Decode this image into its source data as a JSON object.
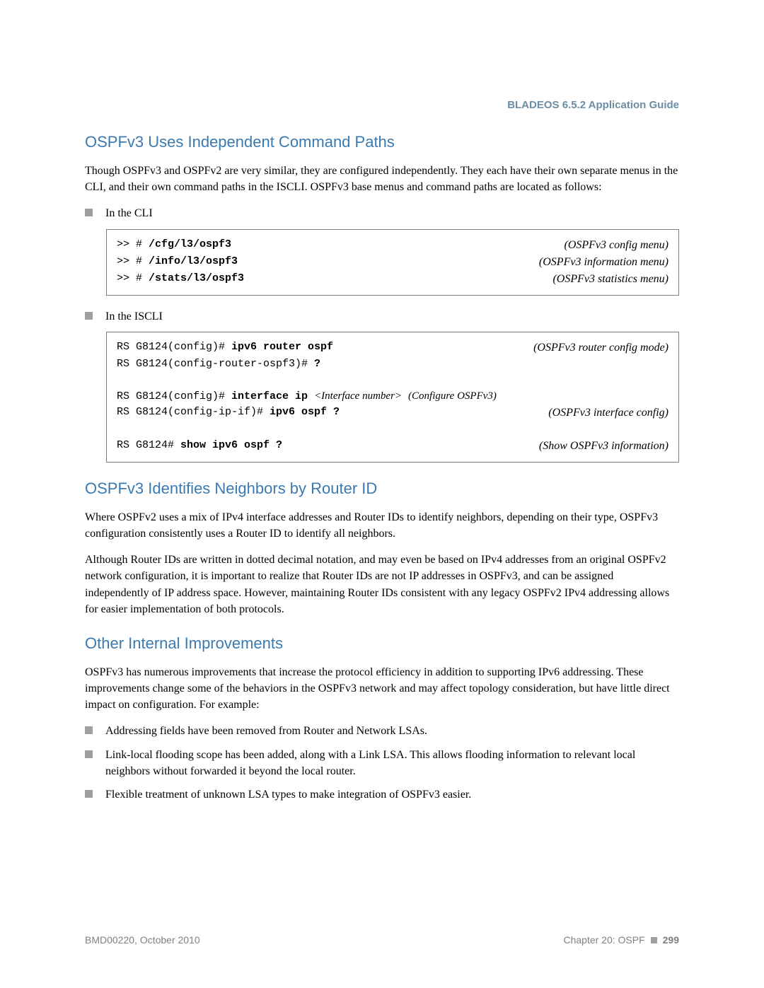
{
  "header": {
    "guide_title": "BLADEOS 6.5.2 Application Guide"
  },
  "sections": {
    "s1": {
      "title": "OSPFv3 Uses Independent Command Paths",
      "p1": "Though OSPFv3 and OSPFv2 are very similar, they are configured independently. They each have their own separate menus in the CLI, and their own command paths in the ISCLI. OSPFv3 base menus and command paths are located as follows:",
      "bul1": "In the CLI",
      "bul2": "In the ISCLI"
    },
    "code1": {
      "l1_prefix": ">> # ",
      "l1_cmd": "/cfg/l3/ospf3",
      "l1_note": "(OSPFv3 config menu)",
      "l2_prefix": ">> # ",
      "l2_cmd": "/info/l3/ospf3",
      "l2_note": "(OSPFv3 information menu)",
      "l3_prefix": ">> # ",
      "l3_cmd": "/stats/l3/ospf3",
      "l3_note": "(OSPFv3 statistics menu)"
    },
    "code2": {
      "l1_prefix": "RS G8124(config)# ",
      "l1_cmd": "ipv6 router ospf",
      "l1_note": "(OSPFv3 router config mode)",
      "l2_prefix": "RS G8124(config-router-ospf3)# ",
      "l2_cmd": "?",
      "l3_prefix": "RS G8124(config)# ",
      "l3_cmd": "interface ip ",
      "l3_arg": "<Interface number>",
      "l3_note": "(Configure OSPFv3)",
      "l4_prefix": "RS G8124(config-ip-if)# ",
      "l4_cmd": "ipv6 ospf ?",
      "l4_note": "(OSPFv3 interface config)",
      "l5_prefix": "RS G8124# ",
      "l5_cmd": "show ipv6 ospf ?",
      "l5_note": "(Show OSPFv3 information)"
    },
    "s2": {
      "title": "OSPFv3 Identifies Neighbors by Router ID",
      "p1": "Where OSPFv2 uses a mix of IPv4 interface addresses and Router IDs to identify neighbors, depending on their type, OSPFv3 configuration consistently uses a Router ID to identify all neighbors.",
      "p2": "Although Router IDs are written in dotted decimal notation, and may even be based on IPv4 addresses from an original OSPFv2 network configuration, it is important to realize that Router IDs are not IP addresses in OSPFv3, and can be assigned independently of IP address space. However, maintaining Router IDs consistent with any legacy OSPFv2 IPv4 addressing allows for easier implementation of both protocols."
    },
    "s3": {
      "title": "Other Internal Improvements",
      "p1": "OSPFv3 has numerous improvements that increase the protocol efficiency in addition to supporting IPv6 addressing. These improvements change some of the behaviors in the OSPFv3 network and may affect topology consideration, but have little direct impact on configuration. For example:",
      "b1": "Addressing fields have been removed from Router and Network LSAs.",
      "b2": "Link-local flooding scope has been added, along with a Link LSA. This allows flooding information to relevant local neighbors without forwarded it beyond the local router.",
      "b3": "Flexible treatment of unknown LSA types to make integration of OSPFv3 easier."
    }
  },
  "footer": {
    "left": "BMD00220, October 2010",
    "chapter": "Chapter 20: OSPF",
    "page": "299"
  }
}
